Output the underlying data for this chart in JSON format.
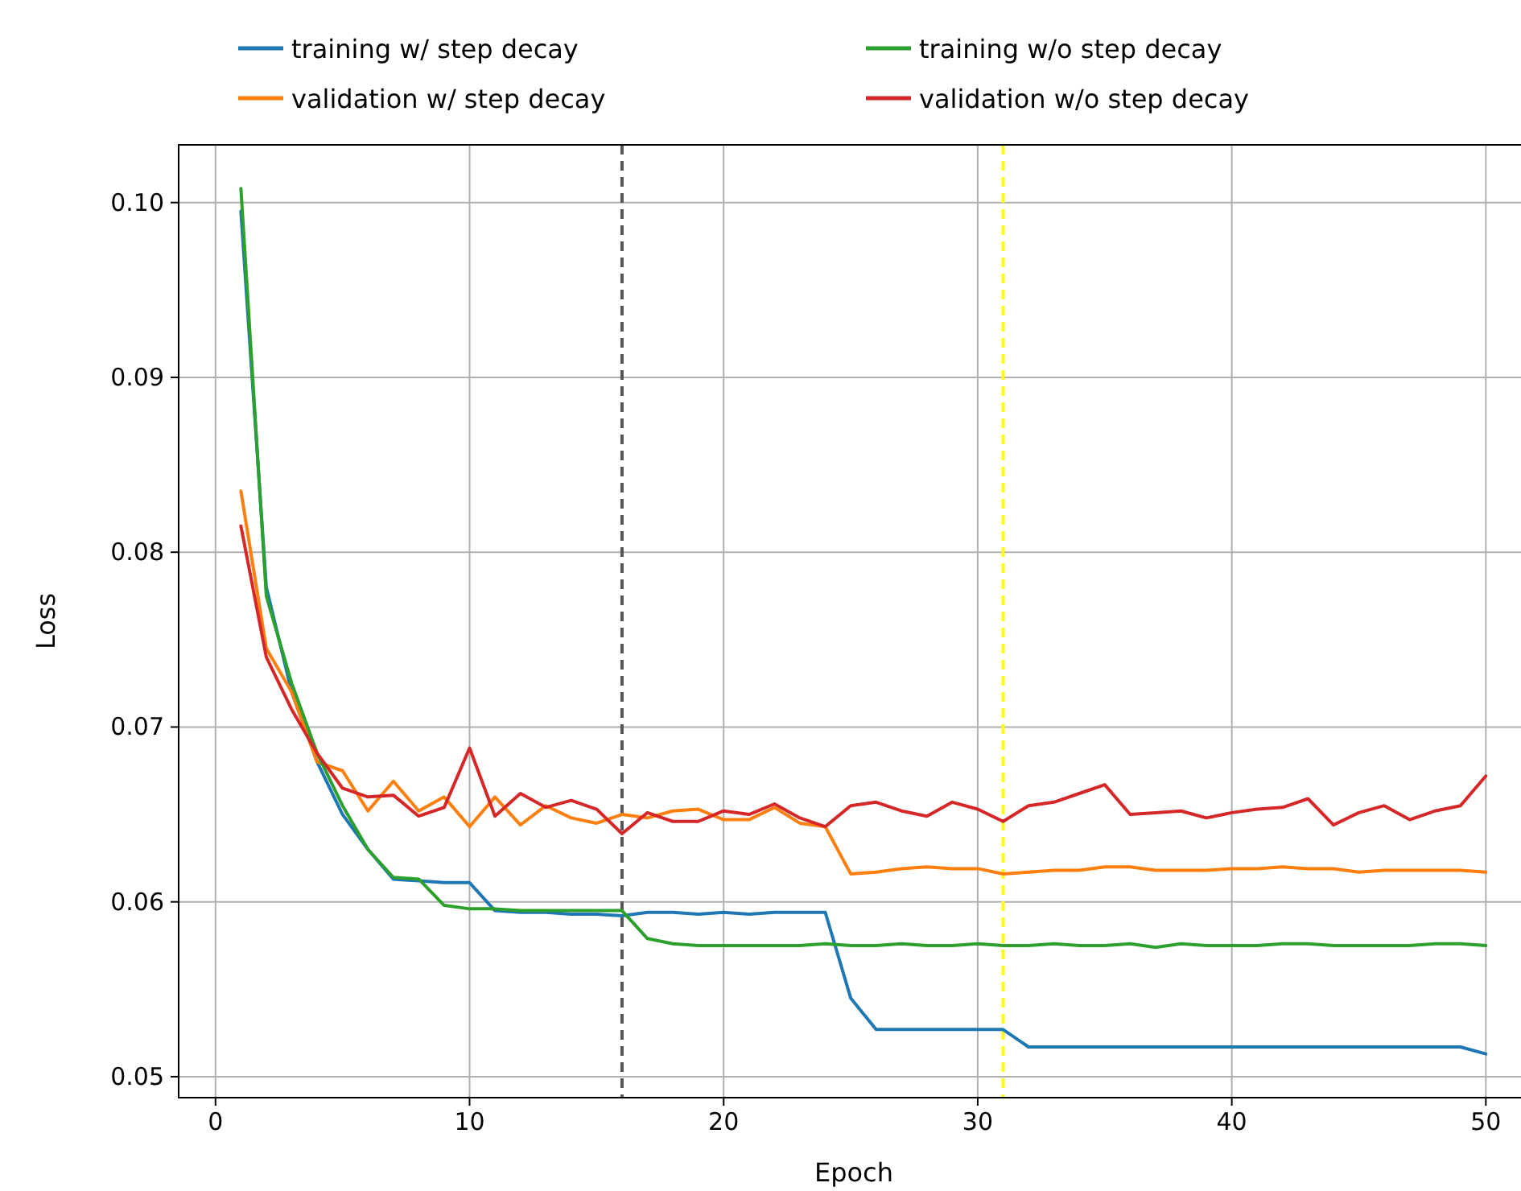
{
  "chart_data": {
    "type": "line",
    "xlabel": "Epoch",
    "ylabel": "Loss",
    "x": [
      1,
      2,
      3,
      4,
      5,
      6,
      7,
      8,
      9,
      10,
      11,
      12,
      13,
      14,
      15,
      16,
      17,
      18,
      19,
      20,
      21,
      22,
      23,
      24,
      25,
      26,
      27,
      28,
      29,
      30,
      31,
      32,
      33,
      34,
      35,
      36,
      37,
      38,
      39,
      40,
      41,
      42,
      43,
      44,
      45,
      46,
      47,
      48,
      49,
      50
    ],
    "xlim": [
      -1.45,
      51.7
    ],
    "xticks": [
      0,
      10,
      20,
      30,
      40,
      50
    ],
    "ylim": [
      0.0488,
      0.1033
    ],
    "yticks": [
      {
        "value": 0.05,
        "label": "0.05"
      },
      {
        "value": 0.06,
        "label": "0.06"
      },
      {
        "value": 0.07,
        "label": "0.07"
      },
      {
        "value": 0.08,
        "label": "0.08"
      },
      {
        "value": 0.09,
        "label": "0.09"
      },
      {
        "value": 0.1,
        "label": "0.10"
      }
    ],
    "grid": true,
    "legend": "top",
    "line_style": "solid",
    "marker": "none",
    "series": [
      {
        "name": "training w/ step decay",
        "color": "#1f77b4",
        "values": [
          0.0995,
          0.078,
          0.072,
          0.068,
          0.065,
          0.063,
          0.0613,
          0.0612,
          0.0611,
          0.0611,
          0.0595,
          0.0594,
          0.0594,
          0.0593,
          0.0593,
          0.0592,
          0.0594,
          0.0594,
          0.0593,
          0.0594,
          0.0593,
          0.0594,
          0.0594,
          0.0594,
          0.0545,
          0.0527,
          0.0527,
          0.0527,
          0.0527,
          0.0527,
          0.0527,
          0.0517,
          0.0517,
          0.0517,
          0.0517,
          0.0517,
          0.0517,
          0.0517,
          0.0517,
          0.0517,
          0.0517,
          0.0517,
          0.0517,
          0.0517,
          0.0517,
          0.0517,
          0.0517,
          0.0517,
          0.0517,
          0.0513
        ]
      },
      {
        "name": "validation w/ step decay",
        "color": "#ff7f0e",
        "values": [
          0.0835,
          0.0745,
          0.072,
          0.068,
          0.0675,
          0.0652,
          0.0669,
          0.0652,
          0.066,
          0.0643,
          0.066,
          0.0644,
          0.0655,
          0.0648,
          0.0645,
          0.065,
          0.0648,
          0.0652,
          0.0653,
          0.0647,
          0.0647,
          0.0654,
          0.0645,
          0.0643,
          0.0616,
          0.0617,
          0.0619,
          0.062,
          0.0619,
          0.0619,
          0.0616,
          0.0617,
          0.0618,
          0.0618,
          0.062,
          0.062,
          0.0618,
          0.0618,
          0.0618,
          0.0619,
          0.0619,
          0.062,
          0.0619,
          0.0619,
          0.0617,
          0.0618,
          0.0618,
          0.0618,
          0.0618,
          0.0617
        ]
      },
      {
        "name": "training w/o step decay",
        "color": "#2ca02c",
        "values": [
          0.1008,
          0.0775,
          0.0725,
          0.0685,
          0.0655,
          0.063,
          0.0614,
          0.0613,
          0.0598,
          0.0596,
          0.0596,
          0.0595,
          0.0595,
          0.0595,
          0.0595,
          0.0595,
          0.0579,
          0.0576,
          0.0575,
          0.0575,
          0.0575,
          0.0575,
          0.0575,
          0.0576,
          0.0575,
          0.0575,
          0.0576,
          0.0575,
          0.0575,
          0.0576,
          0.0575,
          0.0575,
          0.0576,
          0.0575,
          0.0575,
          0.0576,
          0.0574,
          0.0576,
          0.0575,
          0.0575,
          0.0575,
          0.0576,
          0.0576,
          0.0575,
          0.0575,
          0.0575,
          0.0575,
          0.0576,
          0.0576,
          0.0575
        ]
      },
      {
        "name": "validation w/o step decay",
        "color": "#d62728",
        "values": [
          0.0815,
          0.074,
          0.071,
          0.0685,
          0.0665,
          0.066,
          0.0661,
          0.0649,
          0.0654,
          0.0688,
          0.0649,
          0.0662,
          0.0654,
          0.0658,
          0.0653,
          0.0639,
          0.0651,
          0.0646,
          0.0646,
          0.0652,
          0.065,
          0.0656,
          0.0648,
          0.0643,
          0.0655,
          0.0657,
          0.0652,
          0.0649,
          0.0657,
          0.0653,
          0.0646,
          0.0655,
          0.0657,
          0.0662,
          0.0667,
          0.065,
          0.0651,
          0.0652,
          0.0648,
          0.0651,
          0.0653,
          0.0654,
          0.0659,
          0.0644,
          0.0651,
          0.0655,
          0.0647,
          0.0652,
          0.0655,
          0.0672
        ]
      }
    ],
    "ref_lines": [
      {
        "axis": "x",
        "value": 16,
        "color": "#555555",
        "line_style": "dashed"
      },
      {
        "axis": "x",
        "value": 31,
        "color": "#ffff00",
        "line_style": "dashed"
      }
    ]
  }
}
